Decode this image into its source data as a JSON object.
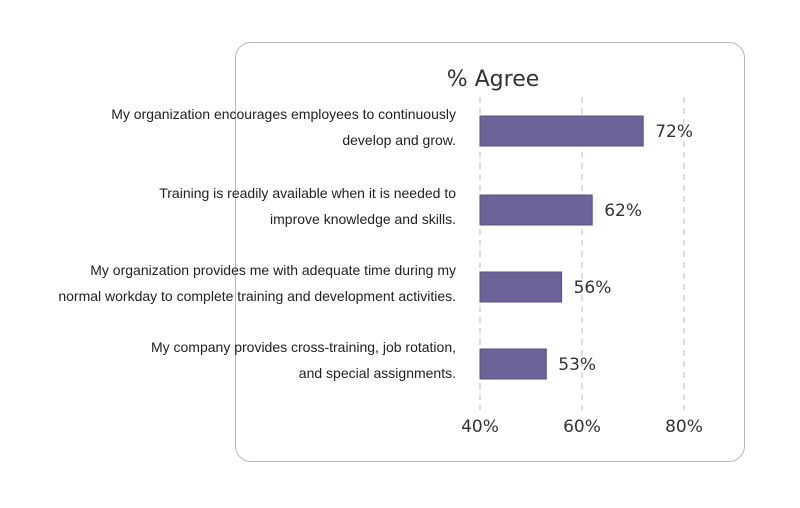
{
  "chart_data": {
    "type": "bar",
    "orientation": "horizontal",
    "title": "% Agree",
    "categories": [
      [
        "My organization encourages employees to continuously",
        "develop and grow."
      ],
      [
        "Training is readily available when it is needed to",
        "improve knowledge and skills."
      ],
      [
        "My organization provides me with adequate time during my",
        "normal workday to complete training and development activities."
      ],
      [
        "My company provides cross-training, job rotation,",
        "and special assignments."
      ]
    ],
    "values": [
      72,
      62,
      56,
      53
    ],
    "value_labels": [
      "72%",
      "62%",
      "56%",
      "53%"
    ],
    "xlim": [
      40,
      80
    ],
    "ticks": [
      40,
      60,
      80
    ],
    "tick_labels": [
      "40%",
      "60%",
      "80%"
    ],
    "grid": true,
    "bar_color": "#6e6399",
    "bar_border_color": "#5a4f85"
  }
}
